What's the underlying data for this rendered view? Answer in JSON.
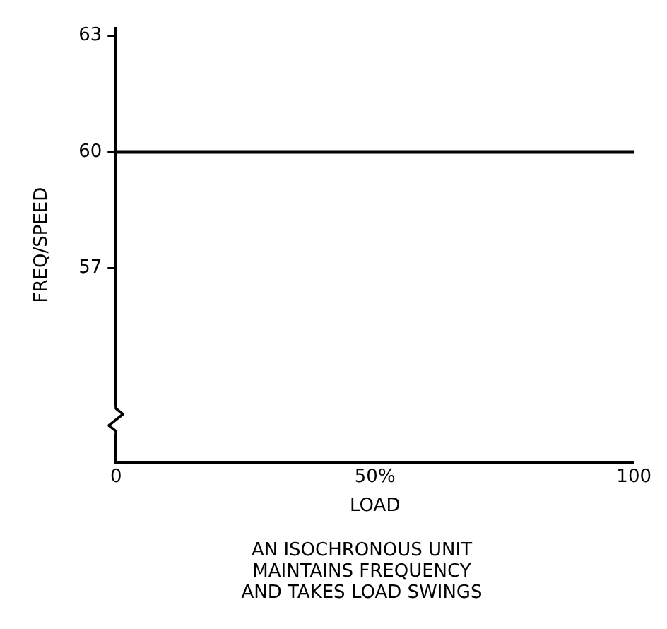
{
  "chart_data": {
    "type": "line",
    "xlabel": "LOAD",
    "ylabel": "FREQ/SPEED",
    "annotations": [
      "AN ISOCHRONOUS UNIT\nMAINTAINS FREQUENCY\nAND TAKES LOAD SWINGS"
    ],
    "x": [
      0,
      100
    ],
    "series": [
      {
        "color": "#000000",
        "values": [
          60,
          60
        ]
      }
    ],
    "xlim": [
      0,
      100
    ],
    "xticks": [
      0,
      {
        "value": 50,
        "label": "50%"
      },
      100
    ],
    "ylim": [
      52,
      63.2
    ],
    "yticks": [
      57,
      60,
      63
    ],
    "grid": false,
    "legend": false,
    "marker": "none",
    "line_style": "solid"
  }
}
